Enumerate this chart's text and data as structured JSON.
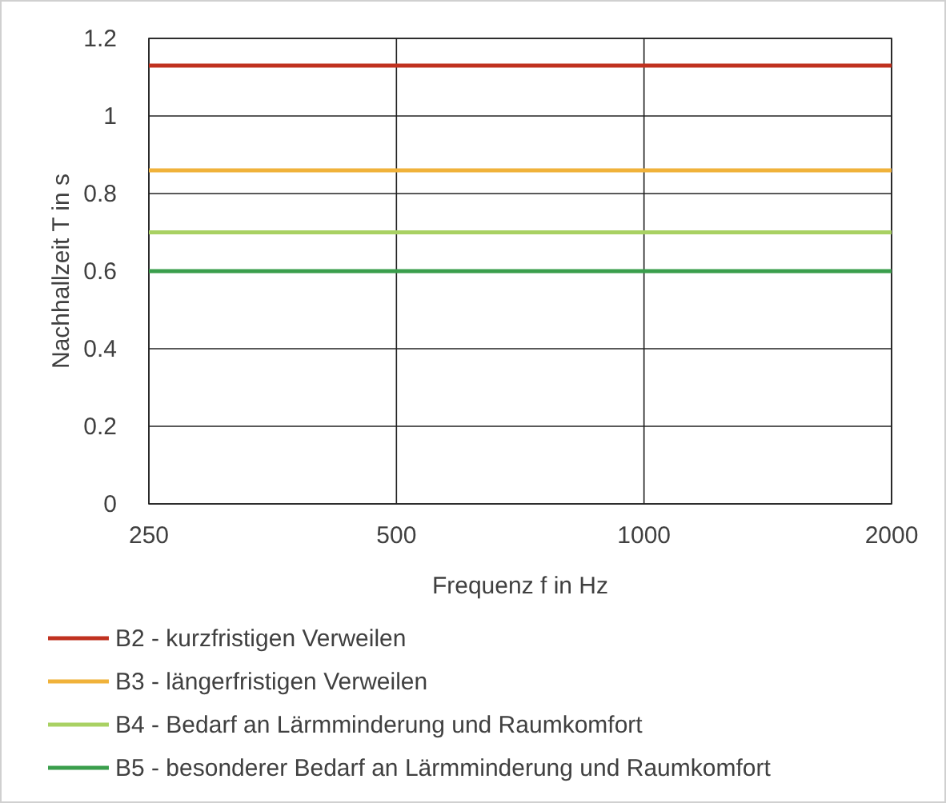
{
  "chart_data": {
    "type": "line",
    "xlabel": "Frequenz f in Hz",
    "ylabel": "Nachhallzeit T in s",
    "log": "x",
    "x": [
      250,
      2000
    ],
    "xlim": [
      250,
      2000
    ],
    "xticks": [
      250,
      500,
      1000,
      2000
    ],
    "ylim": [
      0,
      1.2
    ],
    "yticks": [
      0,
      0.2,
      0.4,
      0.6,
      0.8,
      1,
      1.2
    ],
    "grid": true,
    "legend": "bottom",
    "marker": "none",
    "line_style": "solid",
    "series": [
      {
        "name": "B2 - kurzfristigen Verweilen",
        "color": "#c0311f",
        "values": [
          1.13,
          1.13
        ]
      },
      {
        "name": "B3 - längerfristigen Verweilen",
        "color": "#f0b23a",
        "values": [
          0.86,
          0.86
        ]
      },
      {
        "name": "B4 - Bedarf an Lärmminderung und Raumkomfort",
        "color": "#a9d163",
        "values": [
          0.7,
          0.7
        ]
      },
      {
        "name": "B5 - besonderer Bedarf an Lärmminderung und Raumkomfort",
        "color": "#3a9e4c",
        "values": [
          0.6,
          0.6
        ]
      }
    ]
  }
}
